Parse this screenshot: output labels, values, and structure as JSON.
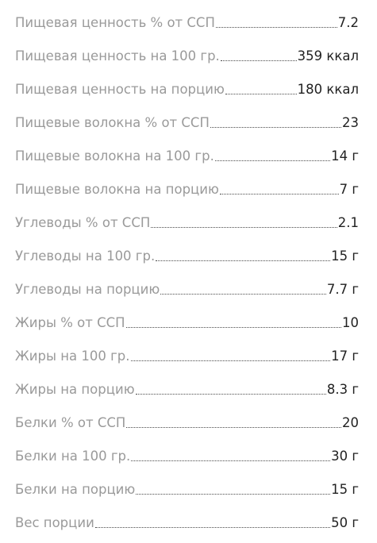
{
  "rows": [
    {
      "label": "Пищевая ценность % от ССП",
      "value": "7.2"
    },
    {
      "label": "Пищевая ценность на 100 гр.",
      "value": "359 ккал"
    },
    {
      "label": "Пищевая ценность на порцию",
      "value": "180 ккал"
    },
    {
      "label": "Пищевые волокна % от ССП",
      "value": "23"
    },
    {
      "label": "Пищевые волокна на 100 гр.",
      "value": "14 г"
    },
    {
      "label": "Пищевые волокна на порцию",
      "value": "7 г"
    },
    {
      "label": "Углеводы % от ССП",
      "value": "2.1"
    },
    {
      "label": "Углеводы на 100 гр.",
      "value": "15 г"
    },
    {
      "label": "Углеводы на порцию",
      "value": "7.7 г"
    },
    {
      "label": "Жиры % от ССП",
      "value": "10"
    },
    {
      "label": "Жиры на 100 гр.",
      "value": "17 г"
    },
    {
      "label": "Жиры на порцию",
      "value": "8.3 г"
    },
    {
      "label": "Белки % от ССП",
      "value": "20"
    },
    {
      "label": "Белки на 100 гр.",
      "value": "30 г"
    },
    {
      "label": "Белки на порцию",
      "value": "15 г"
    },
    {
      "label": "Вес порции",
      "value": "50 г"
    }
  ]
}
